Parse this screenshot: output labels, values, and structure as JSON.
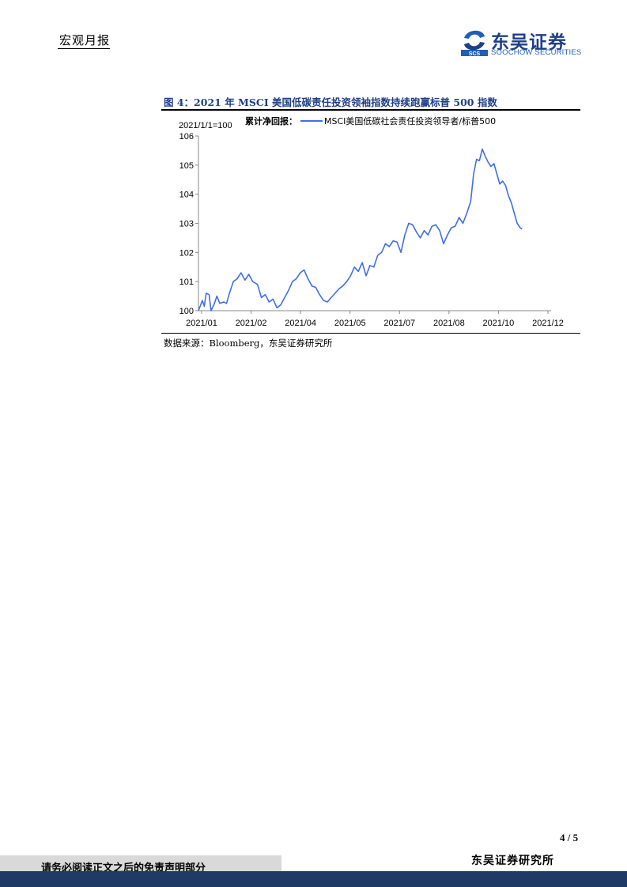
{
  "header": {
    "title": "宏观月报",
    "logo_cn": "东吴证券",
    "logo_en": "SOOCHOW SECURITIES",
    "logo_mark": "SCS"
  },
  "figure": {
    "title": "图 4：2021 年 MSCI 美国低碳责任投资领袖指数持续跑赢标普 500 指数",
    "source": "数据来源：Bloomberg，东吴证券研究所"
  },
  "chart_data": {
    "type": "line",
    "base_note": "2021/1/1=100",
    "legend_prefix": "累计净回报：",
    "legend_position": "top",
    "grid": false,
    "x_ticks": [
      "2021/01",
      "2021/02",
      "2021/04",
      "2021/05",
      "2021/07",
      "2021/08",
      "2021/10",
      "2021/12"
    ],
    "y_ticks": [
      100,
      101,
      102,
      103,
      104,
      105,
      106
    ],
    "ylim": [
      100,
      106
    ],
    "x_range": [
      "2021-01-01",
      "2021-12-31"
    ],
    "series": [
      {
        "name": "MSCI美国低碳社会责任投资领导者/标普500",
        "color": "#3f6ee8",
        "points": [
          [
            "2021-01-01",
            100.0
          ],
          [
            "2021-01-05",
            100.35
          ],
          [
            "2021-01-07",
            100.15
          ],
          [
            "2021-01-09",
            100.6
          ],
          [
            "2021-01-12",
            100.55
          ],
          [
            "2021-01-14",
            100.0
          ],
          [
            "2021-01-17",
            100.2
          ],
          [
            "2021-01-20",
            100.5
          ],
          [
            "2021-01-23",
            100.25
          ],
          [
            "2021-01-27",
            100.3
          ],
          [
            "2021-01-30",
            100.25
          ],
          [
            "2021-02-02",
            100.6
          ],
          [
            "2021-02-06",
            101.0
          ],
          [
            "2021-02-10",
            101.1
          ],
          [
            "2021-02-14",
            101.3
          ],
          [
            "2021-02-18",
            101.05
          ],
          [
            "2021-02-22",
            101.25
          ],
          [
            "2021-02-26",
            101.0
          ],
          [
            "2021-03-03",
            100.9
          ],
          [
            "2021-03-07",
            100.45
          ],
          [
            "2021-03-11",
            100.55
          ],
          [
            "2021-03-15",
            100.3
          ],
          [
            "2021-03-19",
            100.4
          ],
          [
            "2021-03-23",
            100.1
          ],
          [
            "2021-03-27",
            100.2
          ],
          [
            "2021-03-31",
            100.45
          ],
          [
            "2021-04-04",
            100.7
          ],
          [
            "2021-04-08",
            101.0
          ],
          [
            "2021-04-12",
            101.1
          ],
          [
            "2021-04-16",
            101.3
          ],
          [
            "2021-04-20",
            101.4
          ],
          [
            "2021-04-24",
            101.1
          ],
          [
            "2021-04-28",
            100.85
          ],
          [
            "2021-05-02",
            100.8
          ],
          [
            "2021-05-06",
            100.55
          ],
          [
            "2021-05-10",
            100.35
          ],
          [
            "2021-05-14",
            100.3
          ],
          [
            "2021-05-18",
            100.45
          ],
          [
            "2021-05-22",
            100.6
          ],
          [
            "2021-05-26",
            100.75
          ],
          [
            "2021-05-30",
            100.85
          ],
          [
            "2021-06-03",
            101.0
          ],
          [
            "2021-06-07",
            101.2
          ],
          [
            "2021-06-11",
            101.5
          ],
          [
            "2021-06-15",
            101.35
          ],
          [
            "2021-06-19",
            101.65
          ],
          [
            "2021-06-23",
            101.2
          ],
          [
            "2021-06-27",
            101.55
          ],
          [
            "2021-07-01",
            101.5
          ],
          [
            "2021-07-05",
            101.9
          ],
          [
            "2021-07-09",
            102.0
          ],
          [
            "2021-07-13",
            102.3
          ],
          [
            "2021-07-17",
            102.2
          ],
          [
            "2021-07-21",
            102.4
          ],
          [
            "2021-07-25",
            102.35
          ],
          [
            "2021-07-29",
            102.0
          ],
          [
            "2021-08-02",
            102.6
          ],
          [
            "2021-08-06",
            103.0
          ],
          [
            "2021-08-10",
            102.95
          ],
          [
            "2021-08-14",
            102.7
          ],
          [
            "2021-08-18",
            102.5
          ],
          [
            "2021-08-22",
            102.75
          ],
          [
            "2021-08-26",
            102.6
          ],
          [
            "2021-08-30",
            102.9
          ],
          [
            "2021-09-03",
            102.95
          ],
          [
            "2021-09-07",
            102.75
          ],
          [
            "2021-09-11",
            102.3
          ],
          [
            "2021-09-15",
            102.6
          ],
          [
            "2021-09-19",
            102.85
          ],
          [
            "2021-09-23",
            102.9
          ],
          [
            "2021-09-27",
            103.2
          ],
          [
            "2021-10-01",
            103.0
          ],
          [
            "2021-10-05",
            103.35
          ],
          [
            "2021-10-09",
            103.75
          ],
          [
            "2021-10-12",
            104.7
          ],
          [
            "2021-10-15",
            105.2
          ],
          [
            "2021-10-18",
            105.15
          ],
          [
            "2021-10-21",
            105.55
          ],
          [
            "2021-10-24",
            105.3
          ],
          [
            "2021-10-27",
            105.1
          ],
          [
            "2021-10-30",
            104.95
          ],
          [
            "2021-11-02",
            105.05
          ],
          [
            "2021-11-05",
            104.7
          ],
          [
            "2021-11-08",
            104.35
          ],
          [
            "2021-11-11",
            104.45
          ],
          [
            "2021-11-14",
            104.3
          ],
          [
            "2021-11-17",
            103.95
          ],
          [
            "2021-11-20",
            103.7
          ],
          [
            "2021-11-23",
            103.35
          ],
          [
            "2021-11-26",
            103.0
          ],
          [
            "2021-11-29",
            102.85
          ],
          [
            "2021-12-01",
            102.8
          ]
        ]
      }
    ]
  },
  "page": {
    "number": "4 / 5"
  },
  "footer": {
    "disclaimer": "请务必阅读正文之后的免责声明部分",
    "org": "东吴证券研究所"
  }
}
